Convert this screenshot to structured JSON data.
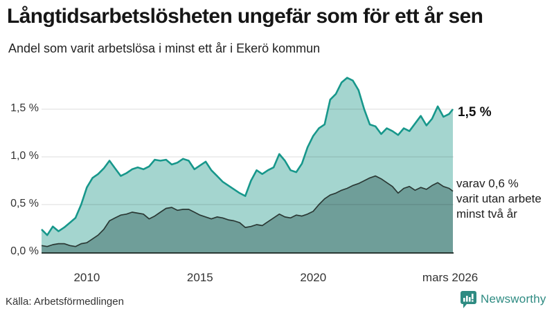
{
  "header": {
    "title": "Långtidsarbetslösheten ungefär som för ett år sen",
    "subtitle": "Andel som varit arbetslösa i minst ett år i Ekerö kommun"
  },
  "annotations": {
    "latest_total": "1,5 %",
    "sub_line1": "varav 0,6 %",
    "sub_line2": "varit utan arbete",
    "sub_line3": "minst två år"
  },
  "footer": {
    "source": "Källa: Arbetsförmedlingen",
    "brand": "Newsworthy"
  },
  "icons": {
    "brand_icon": "newsworthy-chart-bubble-icon"
  },
  "colors": {
    "total_line": "#17978b",
    "total_fill": "#a4d5cf",
    "two_year_line": "#2a3834",
    "two_year_fill": "#6f9e99",
    "grid": "rgba(0,0,0,0.11)",
    "baseline": "#2a3834",
    "brand_teal": "#2e8b82",
    "text": "#1d1d1d"
  },
  "chart_data": {
    "type": "area",
    "title": "Långtidsarbetslösheten ungefär som för ett år sen",
    "subtitle": "Andel som varit arbetslösa i minst ett år i Ekerö kommun",
    "x_unit": "decimal_year",
    "xlim": [
      2008,
      2026.2
    ],
    "ylim": [
      0,
      1.88
    ],
    "grid": true,
    "y_ticks": [
      "0,0 %",
      "0,5 %",
      "1,0 %",
      "1,5 %"
    ],
    "y_tick_values": [
      0,
      0.5,
      1.0,
      1.5
    ],
    "x_ticks": [
      {
        "label": "2010",
        "year": 2010
      },
      {
        "label": "2015",
        "year": 2015
      },
      {
        "label": "2020",
        "year": 2020
      },
      {
        "label": "mars 2026",
        "year": 2026.05
      }
    ],
    "x": [
      2008,
      2008.25,
      2008.5,
      2008.75,
      2009,
      2009.25,
      2009.5,
      2009.75,
      2010,
      2010.25,
      2010.5,
      2010.75,
      2011,
      2011.25,
      2011.5,
      2011.75,
      2012,
      2012.25,
      2012.5,
      2012.75,
      2013,
      2013.25,
      2013.5,
      2013.75,
      2014,
      2014.25,
      2014.5,
      2014.75,
      2015,
      2015.25,
      2015.5,
      2015.75,
      2016,
      2016.25,
      2016.5,
      2016.75,
      2017,
      2017.25,
      2017.5,
      2017.75,
      2018,
      2018.25,
      2018.5,
      2018.75,
      2019,
      2019.25,
      2019.5,
      2019.75,
      2020,
      2020.25,
      2020.5,
      2020.75,
      2021,
      2021.25,
      2021.5,
      2021.75,
      2022,
      2022.25,
      2022.5,
      2022.75,
      2023,
      2023.25,
      2023.5,
      2023.75,
      2024,
      2024.25,
      2024.5,
      2024.75,
      2025,
      2025.25,
      2025.5,
      2025.75,
      2026,
      2026.17
    ],
    "series": [
      {
        "name": "Andel arbetslösa minst ett år",
        "latest_label": "1,5 %",
        "values": [
          0.24,
          0.18,
          0.27,
          0.22,
          0.26,
          0.31,
          0.36,
          0.5,
          0.68,
          0.78,
          0.82,
          0.88,
          0.96,
          0.88,
          0.8,
          0.83,
          0.87,
          0.89,
          0.87,
          0.9,
          0.97,
          0.96,
          0.97,
          0.92,
          0.94,
          0.98,
          0.96,
          0.87,
          0.91,
          0.95,
          0.86,
          0.8,
          0.74,
          0.7,
          0.66,
          0.62,
          0.59,
          0.75,
          0.86,
          0.82,
          0.86,
          0.89,
          1.03,
          0.96,
          0.86,
          0.84,
          0.93,
          1.1,
          1.22,
          1.3,
          1.34,
          1.6,
          1.66,
          1.78,
          1.83,
          1.8,
          1.7,
          1.5,
          1.34,
          1.32,
          1.24,
          1.3,
          1.27,
          1.23,
          1.3,
          1.27,
          1.35,
          1.43,
          1.33,
          1.4,
          1.53,
          1.42,
          1.45,
          1.5
        ]
      },
      {
        "name": "varav utan arbete minst två år",
        "latest_label": "0,6 %",
        "values": [
          0.07,
          0.06,
          0.08,
          0.09,
          0.09,
          0.07,
          0.06,
          0.09,
          0.1,
          0.14,
          0.18,
          0.24,
          0.33,
          0.36,
          0.39,
          0.4,
          0.42,
          0.41,
          0.4,
          0.35,
          0.38,
          0.42,
          0.46,
          0.47,
          0.44,
          0.45,
          0.45,
          0.42,
          0.39,
          0.37,
          0.35,
          0.37,
          0.36,
          0.34,
          0.33,
          0.31,
          0.26,
          0.27,
          0.29,
          0.28,
          0.32,
          0.36,
          0.4,
          0.37,
          0.36,
          0.39,
          0.38,
          0.4,
          0.43,
          0.5,
          0.56,
          0.6,
          0.62,
          0.65,
          0.67,
          0.7,
          0.72,
          0.75,
          0.78,
          0.8,
          0.77,
          0.73,
          0.69,
          0.62,
          0.67,
          0.69,
          0.65,
          0.68,
          0.66,
          0.7,
          0.73,
          0.69,
          0.67,
          0.64
        ]
      }
    ]
  }
}
